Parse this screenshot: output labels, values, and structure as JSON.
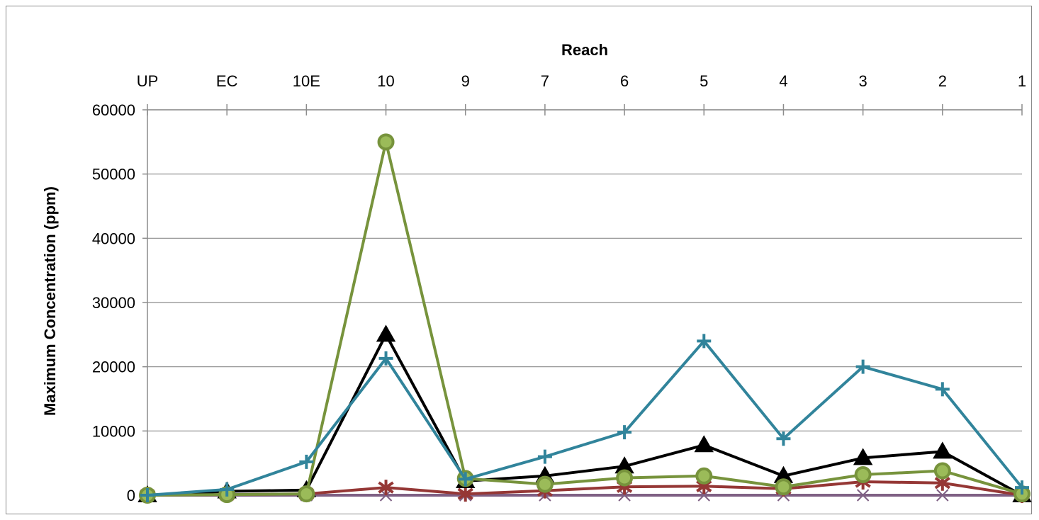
{
  "chart_data": {
    "type": "line",
    "title": "",
    "xlabel": "Reach",
    "ylabel": "Maximum Concentration (ppm)",
    "x_axis_position": "top",
    "categories": [
      "UP",
      "EC",
      "10E",
      "10",
      "9",
      "7",
      "6",
      "5",
      "4",
      "3",
      "2",
      "1"
    ],
    "ylim": [
      0,
      60000
    ],
    "yticks": [
      0,
      10000,
      20000,
      30000,
      40000,
      50000,
      60000
    ],
    "grid": true,
    "legend": "none",
    "series": [
      {
        "color": "#000000",
        "marker": "triangle",
        "values": [
          0,
          600,
          800,
          25000,
          2200,
          3000,
          4500,
          7800,
          3000,
          5800,
          6800,
          0
        ]
      },
      {
        "color": "#953735",
        "marker": "star",
        "values": [
          0,
          100,
          200,
          1200,
          200,
          700,
          1300,
          1400,
          1000,
          2100,
          1900,
          0
        ]
      },
      {
        "color": "#7f6084",
        "marker": "x",
        "values": [
          0,
          0,
          0,
          0,
          0,
          0,
          0,
          0,
          0,
          0,
          0,
          0
        ]
      },
      {
        "color": "#77933c",
        "marker": "circle",
        "values": [
          0,
          100,
          200,
          55000,
          2600,
          1700,
          2700,
          3000,
          1300,
          3200,
          3800,
          200
        ]
      },
      {
        "color": "#31849b",
        "marker": "plus",
        "values": [
          0,
          900,
          5200,
          21300,
          2500,
          6000,
          9800,
          24000,
          8800,
          20000,
          16500,
          1200
        ]
      }
    ]
  }
}
